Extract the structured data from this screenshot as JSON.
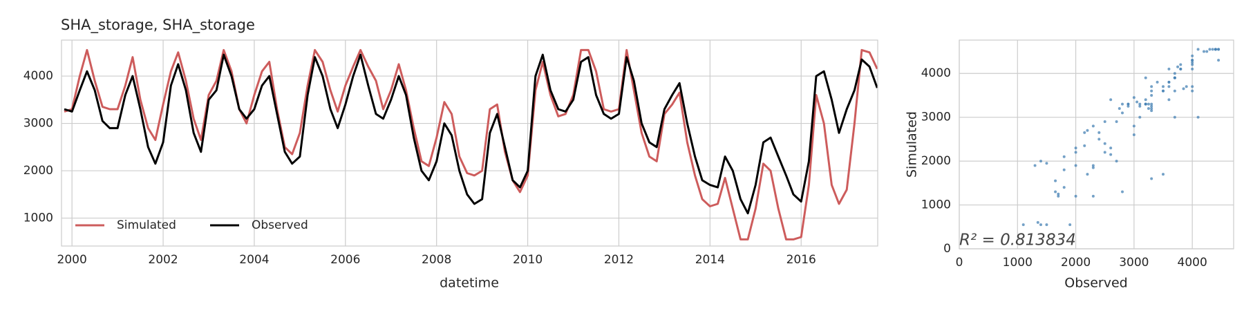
{
  "chart_data": [
    {
      "type": "line",
      "title": "SHA_storage, SHA_storage",
      "xlabel": "datetime",
      "xlim": [
        1999.77,
        2017.68
      ],
      "ylim": [
        410,
        4760
      ],
      "xticks": [
        2000,
        2002,
        2004,
        2006,
        2008,
        2010,
        2012,
        2014,
        2016
      ],
      "yticks": [
        1000,
        2000,
        3000,
        4000
      ],
      "grid": true,
      "legend": "lower left",
      "x": [
        1999.83,
        2000,
        2000.17,
        2000.33,
        2000.5,
        2000.67,
        2000.83,
        2001,
        2001.17,
        2001.33,
        2001.5,
        2001.67,
        2001.83,
        2002,
        2002.17,
        2002.33,
        2002.5,
        2002.67,
        2002.83,
        2003,
        2003.17,
        2003.33,
        2003.5,
        2003.67,
        2003.83,
        2004,
        2004.17,
        2004.33,
        2004.5,
        2004.67,
        2004.83,
        2005,
        2005.17,
        2005.33,
        2005.5,
        2005.67,
        2005.83,
        2006,
        2006.17,
        2006.33,
        2006.5,
        2006.67,
        2006.83,
        2007,
        2007.17,
        2007.33,
        2007.5,
        2007.67,
        2007.83,
        2008,
        2008.17,
        2008.33,
        2008.5,
        2008.67,
        2008.83,
        2009,
        2009.17,
        2009.33,
        2009.5,
        2009.67,
        2009.83,
        2010,
        2010.17,
        2010.33,
        2010.5,
        2010.67,
        2010.83,
        2011,
        2011.17,
        2011.33,
        2011.5,
        2011.67,
        2011.83,
        2012,
        2012.17,
        2012.33,
        2012.5,
        2012.67,
        2012.83,
        2013,
        2013.17,
        2013.33,
        2013.5,
        2013.67,
        2013.83,
        2014,
        2014.17,
        2014.33,
        2014.5,
        2014.67,
        2014.83,
        2015,
        2015.17,
        2015.33,
        2015.5,
        2015.67,
        2015.83,
        2016,
        2016.17,
        2016.33,
        2016.5,
        2016.67,
        2016.83,
        2017,
        2017.17,
        2017.33,
        2017.5,
        2017.67
      ],
      "series": [
        {
          "name": "Simulated",
          "color": "#cd5c5c",
          "values": [
            3250,
            3300,
            4000,
            4550,
            3900,
            3350,
            3300,
            3300,
            3800,
            4400,
            3500,
            2900,
            2650,
            3400,
            4100,
            4500,
            3900,
            3100,
            2650,
            3600,
            3900,
            4550,
            4100,
            3300,
            3000,
            3600,
            4100,
            4300,
            3300,
            2500,
            2350,
            2800,
            3800,
            4550,
            4300,
            3700,
            3250,
            3800,
            4200,
            4550,
            4200,
            3900,
            3300,
            3700,
            4250,
            3700,
            2900,
            2200,
            2100,
            2700,
            3450,
            3200,
            2300,
            1950,
            1900,
            2000,
            3300,
            3400,
            2400,
            1800,
            1550,
            1900,
            3700,
            4300,
            3600,
            3150,
            3200,
            3600,
            4550,
            4550,
            4100,
            3300,
            3250,
            3300,
            4550,
            3700,
            2800,
            2300,
            2200,
            3200,
            3400,
            3650,
            2600,
            1900,
            1400,
            1250,
            1300,
            1850,
            1200,
            550,
            550,
            1200,
            2150,
            2000,
            1200,
            550,
            550,
            600,
            1700,
            3600,
            3000,
            1700,
            1300,
            1600,
            3000,
            4550,
            4500,
            4150
          ]
        },
        {
          "name": "Observed",
          "color": "#000000",
          "values": [
            3300,
            3250,
            3700,
            4100,
            3700,
            3050,
            2900,
            2900,
            3600,
            4000,
            3300,
            2500,
            2150,
            2600,
            3800,
            4250,
            3700,
            2800,
            2400,
            3500,
            3700,
            4450,
            4000,
            3300,
            3100,
            3300,
            3800,
            4000,
            3200,
            2400,
            2150,
            2300,
            3600,
            4400,
            4000,
            3300,
            2900,
            3400,
            4000,
            4450,
            3800,
            3200,
            3100,
            3500,
            4000,
            3600,
            2700,
            2000,
            1800,
            2200,
            3000,
            2750,
            2000,
            1500,
            1300,
            1400,
            2800,
            3200,
            2500,
            1800,
            1650,
            2000,
            4000,
            4450,
            3700,
            3300,
            3250,
            3500,
            4300,
            4400,
            3600,
            3200,
            3100,
            3200,
            4400,
            3900,
            3000,
            2600,
            2500,
            3300,
            3600,
            3850,
            3000,
            2300,
            1800,
            1700,
            1650,
            2300,
            2000,
            1400,
            1100,
            1700,
            2600,
            2700,
            2300,
            1900,
            1500,
            1350,
            2200,
            4000,
            4100,
            3500,
            2800,
            3300,
            3700,
            4350,
            4200,
            3750
          ]
        }
      ]
    },
    {
      "type": "scatter",
      "xlabel": "Observed",
      "ylabel": "Simulated",
      "annotation": "R² = 0.813834",
      "xlim": [
        0,
        4710
      ],
      "ylim": [
        0,
        4760
      ],
      "xticks": [
        0,
        1000,
        2000,
        3000,
        4000
      ],
      "yticks": [
        0,
        1000,
        2000,
        3000,
        4000
      ],
      "grid": true,
      "color": "#4682b4",
      "x": [
        3300,
        3250,
        3700,
        4100,
        3700,
        3050,
        2900,
        2900,
        3600,
        4000,
        3300,
        2500,
        2150,
        2600,
        3800,
        4250,
        3700,
        2800,
        2400,
        3500,
        3700,
        4450,
        4000,
        3300,
        3100,
        3300,
        3800,
        4000,
        3200,
        2400,
        2150,
        2300,
        3600,
        4400,
        4000,
        3300,
        2900,
        3400,
        4000,
        4450,
        3800,
        3200,
        3100,
        3500,
        4000,
        3600,
        2700,
        2000,
        1800,
        2200,
        3000,
        2750,
        2000,
        1500,
        1300,
        1400,
        2800,
        3200,
        2500,
        1800,
        1650,
        2000,
        4000,
        4450,
        3700,
        3300,
        3250,
        3500,
        4300,
        4400,
        3600,
        3200,
        3100,
        3200,
        4400,
        3900,
        3000,
        2600,
        2500,
        3300,
        3600,
        3850,
        3000,
        2300,
        1800,
        1700,
        1650,
        2300,
        2000,
        1400,
        1100,
        1700,
        2600,
        2700,
        2300,
        1900,
        1500,
        1350,
        2200,
        4000,
        4100,
        3500,
        2800,
        3300,
        3700,
        4350,
        4200,
        3750
      ],
      "y": [
        3250,
        3300,
        4000,
        4550,
        3900,
        3350,
        3300,
        3300,
        3800,
        4400,
        3500,
        2900,
        2650,
        3400,
        4100,
        4500,
        3900,
        3100,
        2650,
        3600,
        3900,
        4550,
        4100,
        3300,
        3000,
        3600,
        4100,
        4300,
        3300,
        2500,
        2350,
        2800,
        3800,
        4550,
        4300,
        3700,
        3250,
        3800,
        4200,
        4550,
        4200,
        3900,
        3300,
        3700,
        4250,
        3700,
        2900,
        2200,
        2100,
        2700,
        3450,
        3200,
        2300,
        1950,
        1900,
        2000,
        3300,
        3400,
        2400,
        1800,
        1550,
        1900,
        3700,
        4300,
        3600,
        3150,
        3200,
        3600,
        4550,
        4550,
        4100,
        3300,
        3250,
        3300,
        4550,
        3700,
        2800,
        2300,
        2200,
        3200,
        3400,
        3650,
        2600,
        1900,
        1400,
        1250,
        1300,
        1850,
        1200,
        550,
        550,
        1200,
        2150,
        2000,
        1200,
        550,
        550,
        600,
        1700,
        3600,
        3000,
        1700,
        1300,
        1600,
        3000,
        4550,
        4500,
        4150
      ]
    }
  ]
}
